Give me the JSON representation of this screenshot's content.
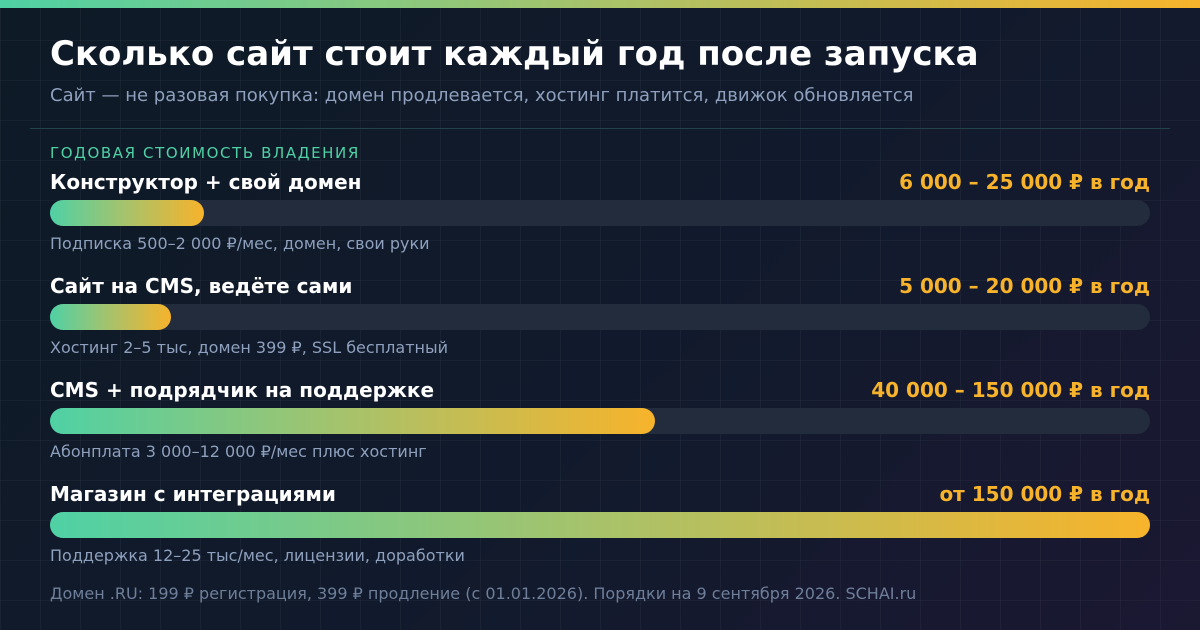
{
  "header": {
    "title": "Сколько сайт стоит каждый год после запуска",
    "subtitle": "Сайт — не разовая покупка: домен продлевается, хостинг платится, движок обновляется"
  },
  "section_label": "ГОДОВАЯ СТОИМОСТЬ ВЛАДЕНИЯ",
  "colors": {
    "accent_green": "#4fd1a5",
    "accent_orange": "#f7b32b",
    "track": "#222c3d"
  },
  "chart_data": {
    "type": "bar",
    "orientation": "horizontal",
    "categories": [
      "Конструктор + свой домен",
      "Сайт на CMS, ведёте сами",
      "CMS + подрядчик на поддержке",
      "Магазин с интеграциями"
    ],
    "value_labels": [
      "6 000 – 25 000 ₽ в год",
      "5 000 – 20 000 ₽ в год",
      "40 000 – 150 000 ₽ в год",
      "от 150 000 ₽ в год"
    ],
    "notes": [
      "Подписка 500–2 000 ₽/мес, домен, свои руки",
      "Хостинг 2–5 тыс, домен 399 ₽, SSL бесплатный",
      "Абонплата 3 000–12 000 ₽/мес плюс хостинг",
      "Поддержка 12–25 тыс/мес, лицензии, доработки"
    ],
    "fill_fractions": [
      0.14,
      0.11,
      0.55,
      1.0
    ]
  },
  "footer": "Домен .RU: 199 ₽ регистрация, 399 ₽ продление (с 01.01.2026). Порядки на 9 сентября 2026. SCHAI.ru"
}
